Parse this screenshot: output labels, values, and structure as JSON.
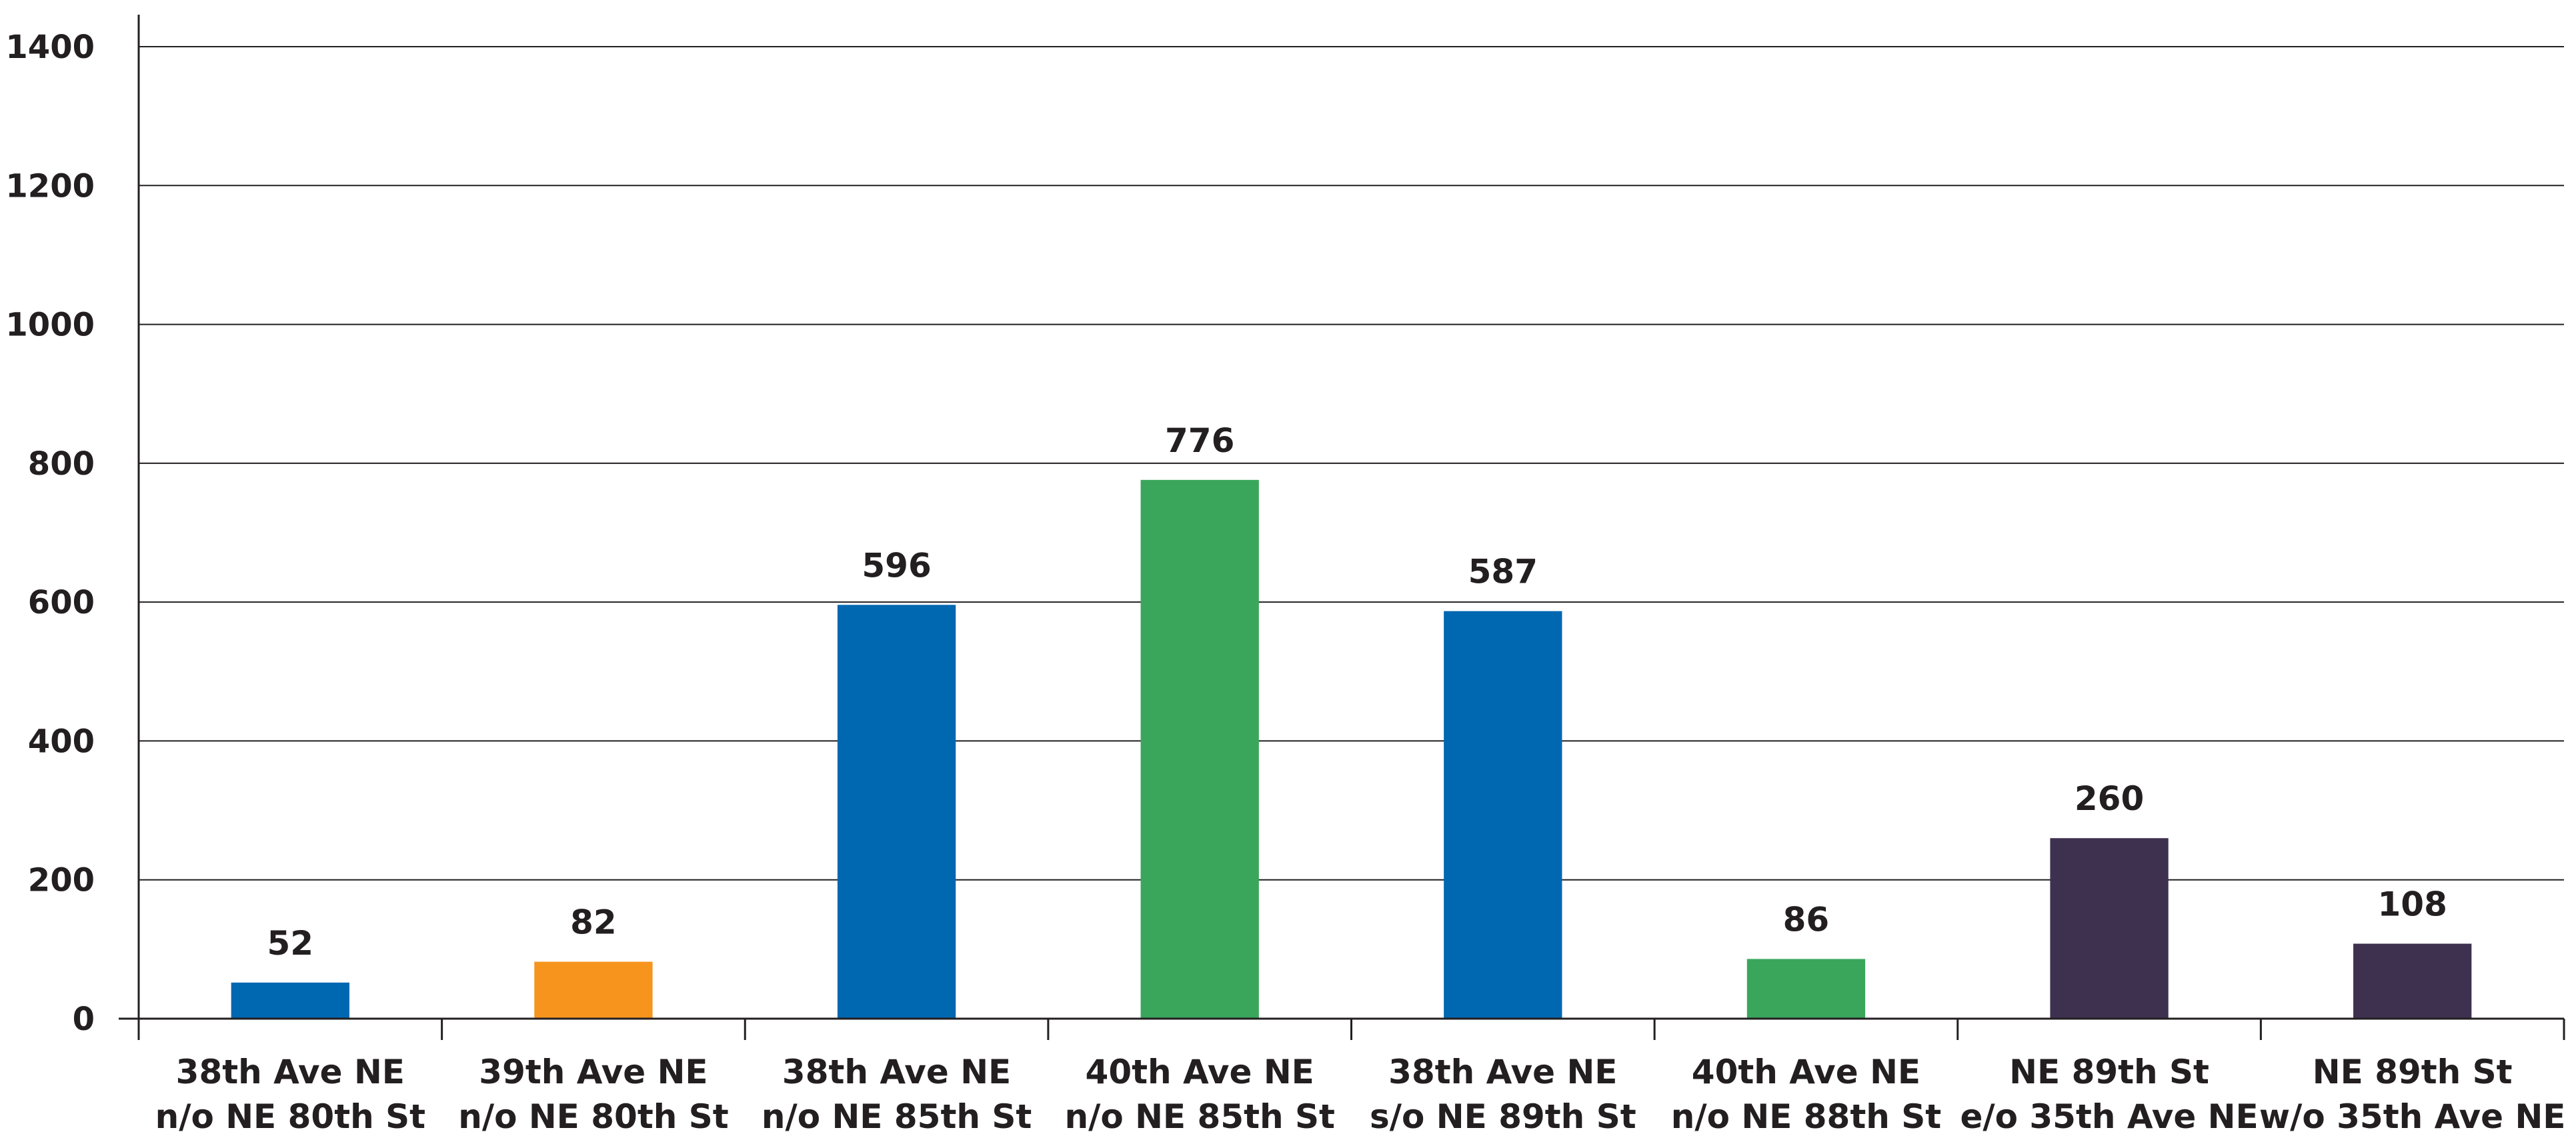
{
  "chart_data": {
    "type": "bar",
    "categories": [
      [
        "38th Ave NE",
        "n/o NE 80th St"
      ],
      [
        "39th Ave NE",
        "n/o NE 80th St"
      ],
      [
        "38th Ave NE",
        "n/o NE 85th St"
      ],
      [
        "40th Ave NE",
        "n/o NE 85th St"
      ],
      [
        "38th Ave NE",
        "s/o NE 89th St"
      ],
      [
        "40th Ave NE",
        "n/o NE 88th St"
      ],
      [
        "NE 89th St",
        "e/o 35th Ave NE"
      ],
      [
        "NE 89th St",
        "w/o 35th Ave NE"
      ]
    ],
    "values": [
      52,
      82,
      596,
      776,
      587,
      86,
      260,
      108
    ],
    "data_labels": [
      "52",
      "82",
      "596",
      "776",
      "587",
      "86",
      "260",
      "108"
    ],
    "bar_colors": [
      "#0067b1",
      "#f7941d",
      "#0067b1",
      "#3aa65c",
      "#0067b1",
      "#3aa65c",
      "#3e3150",
      "#3e3150"
    ],
    "ylim": [
      0,
      1400
    ],
    "yticks": [
      "0",
      "200",
      "400",
      "600",
      "800",
      "1000",
      "1200",
      "1400"
    ],
    "grid": true,
    "legend": "none",
    "title": "",
    "xlabel": "",
    "ylabel": ""
  }
}
